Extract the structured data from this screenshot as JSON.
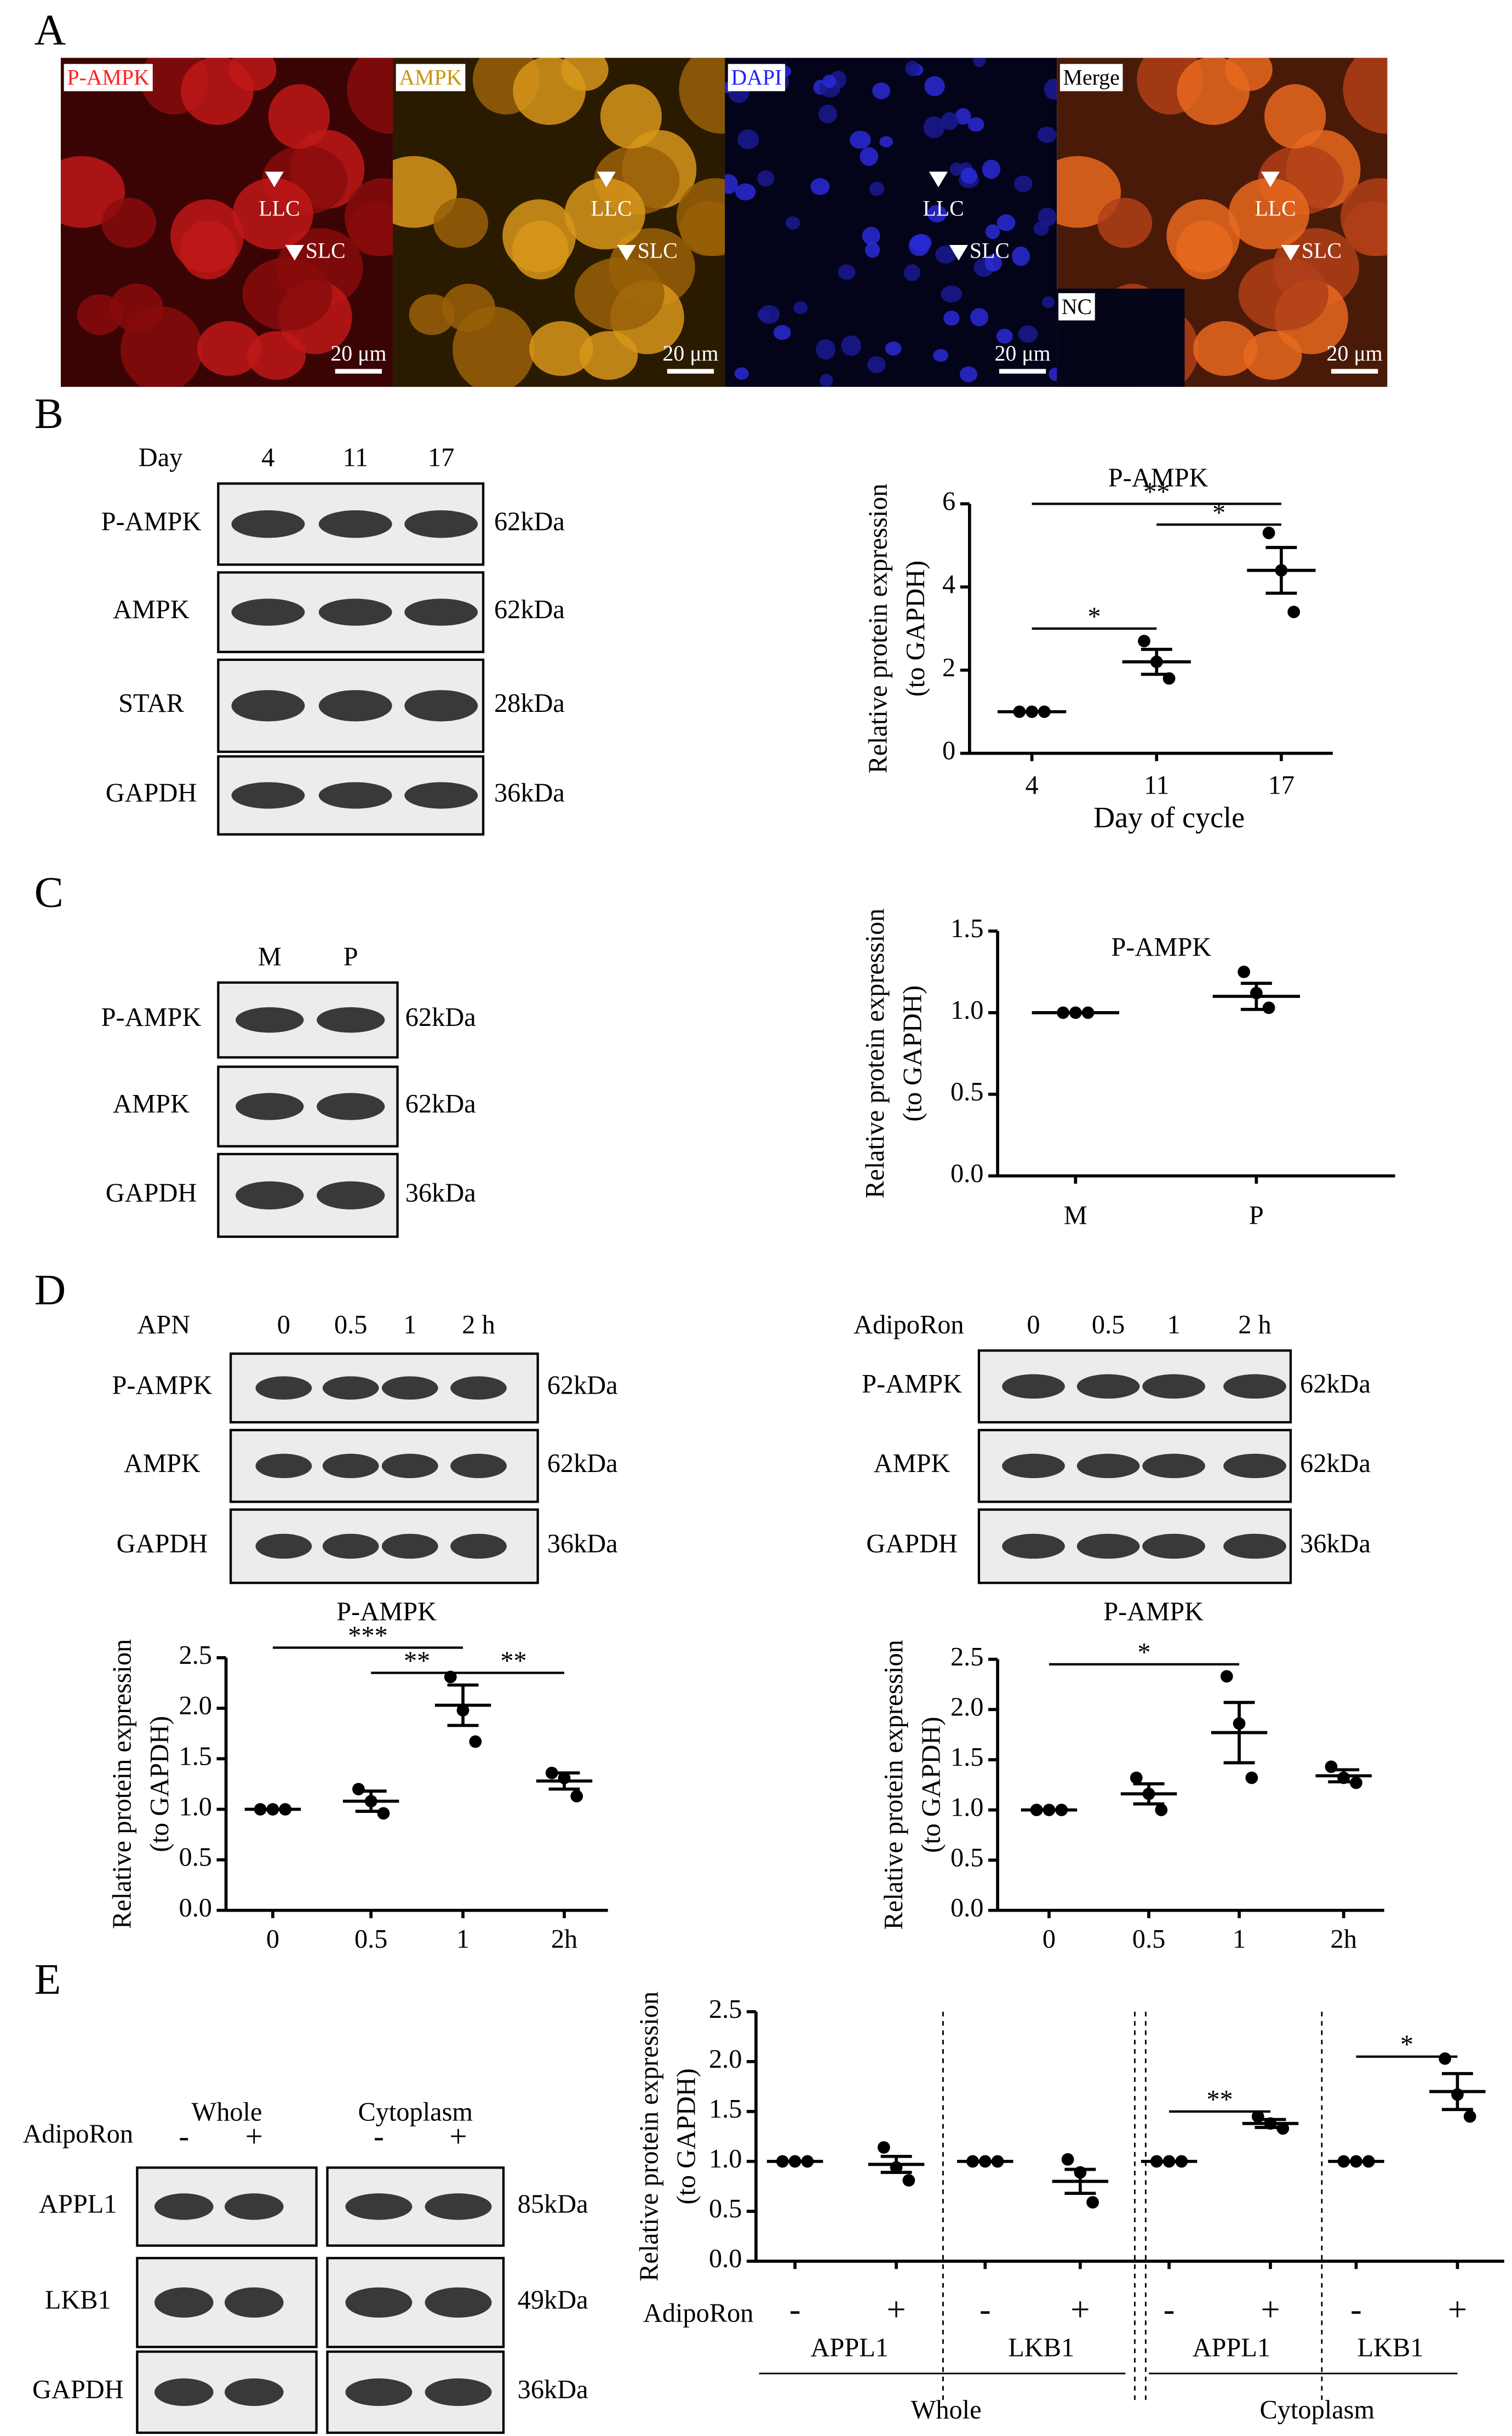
{
  "panel_labels": [
    "A",
    "B",
    "C",
    "D",
    "E"
  ],
  "panel_A": {
    "images": [
      {
        "label": "P-AMPK",
        "color": "#ff2020"
      },
      {
        "label": "AMPK",
        "color": "#c8960f"
      },
      {
        "label": "DAPI",
        "color": "#2020ff"
      },
      {
        "label": "Merge",
        "color": "#000000"
      }
    ],
    "markers": [
      "LLC",
      "SLC"
    ],
    "scale_bar": "20 μm",
    "inset": "NC"
  },
  "blots": [
    {
      "header": "Day",
      "lanes": [
        "4",
        "11",
        "17"
      ],
      "rows": [
        {
          "label": "P-AMPK",
          "size": "62kDa"
        },
        {
          "label": "AMPK",
          "size": "62kDa"
        },
        {
          "label": "STAR",
          "size": "28kDa"
        },
        {
          "label": "GAPDH",
          "size": "36kDa"
        }
      ]
    },
    {
      "lanes": [
        "M",
        "P"
      ],
      "rows": [
        {
          "label": "P-AMPK",
          "size": "62kDa"
        },
        {
          "label": "AMPK",
          "size": "62kDa"
        },
        {
          "label": "GAPDH",
          "size": "36kDa"
        }
      ]
    },
    {
      "header": "APN",
      "lanes": [
        "0",
        "0.5",
        "1",
        "2 h"
      ],
      "rows": [
        {
          "label": "P-AMPK",
          "size": "62kDa"
        },
        {
          "label": "AMPK",
          "size": "62kDa"
        },
        {
          "label": "GAPDH",
          "size": "36kDa"
        }
      ]
    },
    {
      "header": "AdipoRon",
      "lanes": [
        "0",
        "0.5",
        "1",
        "2 h"
      ],
      "rows": [
        {
          "label": "P-AMPK",
          "size": "62kDa"
        },
        {
          "label": "AMPK",
          "size": "62kDa"
        },
        {
          "label": "GAPDH",
          "size": "36kDa"
        }
      ]
    },
    {
      "header": "AdipoRon",
      "groups": [
        {
          "label": "Whole",
          "lanes": [
            "-",
            "+"
          ]
        },
        {
          "label": "Cytoplasm",
          "lanes": [
            "-",
            "+"
          ]
        }
      ],
      "rows": [
        {
          "label": "APPL1",
          "size": "85kDa"
        },
        {
          "label": "LKB1",
          "size": "49kDa"
        },
        {
          "label": "GAPDH",
          "size": "36kDa"
        }
      ]
    }
  ],
  "chart_data": [
    {
      "type": "dot_plot",
      "title": "P-AMPK",
      "ylabel": [
        "Relative protein expression",
        "(to GAPDH)"
      ],
      "xlabel": "Day of cycle",
      "categories": [
        "4",
        "11",
        "17"
      ],
      "points": [
        [
          1,
          1,
          1
        ],
        [
          2.7,
          2.2,
          1.8
        ],
        [
          5.3,
          4.4,
          3.4
        ]
      ],
      "means": [
        1,
        2.2,
        4.4
      ],
      "sem": [
        0,
        0.3,
        0.55
      ],
      "ylim": [
        0,
        6
      ],
      "yticks": [
        0,
        2,
        4,
        6
      ],
      "significance": [
        {
          "label": "**",
          "between": [
            0,
            2
          ],
          "y": 6.0
        },
        {
          "label": "*",
          "between": [
            0,
            1
          ],
          "y": 3.0
        },
        {
          "label": "*",
          "between": [
            1,
            2
          ],
          "y": 5.5
        }
      ],
      "color": "#000000"
    },
    {
      "type": "dot_plot",
      "title": "P-AMPK",
      "ylabel": [
        "Relative protein expression",
        "(to GAPDH)"
      ],
      "categories": [
        "M",
        "P"
      ],
      "points": [
        [
          1,
          1,
          1
        ],
        [
          1.25,
          1.12,
          1.03
        ]
      ],
      "means": [
        1,
        1.1
      ],
      "sem": [
        0,
        0.08
      ],
      "ylim": [
        0,
        1.5
      ],
      "yticks": [
        {
          "value": 0,
          "label": "0.0"
        },
        0.5,
        {
          "value": 1,
          "label": "1.0"
        },
        1.5
      ],
      "color": "#000000"
    },
    {
      "type": "dot_plot",
      "title": "P-AMPK",
      "ylabel": [
        "Relative protein expression",
        "(to GAPDH)"
      ],
      "categories": [
        "0",
        "0.5",
        "1",
        "2h"
      ],
      "points": [
        [
          1,
          1,
          1
        ],
        [
          1.2,
          1.08,
          0.96
        ],
        [
          2.31,
          1.98,
          1.67
        ],
        [
          1.36,
          1.31,
          1.13
        ]
      ],
      "means": [
        1,
        1.08,
        2.03,
        1.28
      ],
      "sem": [
        0,
        0.1,
        0.2,
        0.08
      ],
      "ylim": [
        0,
        2.5
      ],
      "yticks": [
        {
          "value": 0,
          "label": "0.0"
        },
        0.5,
        {
          "value": 1,
          "label": "1.0"
        },
        1.5,
        {
          "value": 2,
          "label": "2.0"
        },
        2.5
      ],
      "significance": [
        {
          "label": "***",
          "between": [
            0,
            2
          ],
          "y": 2.6
        },
        {
          "label": "**",
          "between": [
            1,
            2
          ],
          "y": 2.35
        },
        {
          "label": "**",
          "between": [
            2,
            3
          ],
          "y": 2.35
        }
      ],
      "color": "#000000"
    },
    {
      "type": "dot_plot",
      "title": "P-AMPK",
      "ylabel": [
        "Relative protein expression",
        "(to GAPDH)"
      ],
      "categories": [
        "0",
        "0.5",
        "1",
        "2h"
      ],
      "points": [
        [
          1,
          1,
          1
        ],
        [
          1.32,
          1.16,
          1.0
        ],
        [
          2.33,
          1.86,
          1.32
        ],
        [
          1.43,
          1.32,
          1.27
        ]
      ],
      "means": [
        1,
        1.16,
        1.77,
        1.34
      ],
      "sem": [
        0,
        0.1,
        0.3,
        0.06
      ],
      "ylim": [
        0,
        2.5
      ],
      "yticks": [
        {
          "value": 0,
          "label": "0.0"
        },
        0.5,
        {
          "value": 1,
          "label": "1.0"
        },
        1.5,
        {
          "value": 2,
          "label": "2.0"
        },
        2.5
      ],
      "significance": [
        {
          "label": "*",
          "between": [
            0,
            2
          ],
          "y": 2.45
        }
      ],
      "color": "#000000"
    },
    {
      "type": "dot_plot",
      "ylabel": [
        "Relative protein expression",
        "(to GAPDH)"
      ],
      "row_label": "AdipoRon",
      "categories": [
        "-",
        "+",
        "-",
        "+",
        "-",
        "+",
        "-",
        "+"
      ],
      "subgroups": [
        "APPL1",
        "LKB1",
        "APPL1",
        "LKB1"
      ],
      "groups": [
        "Whole",
        "Cytoplasm"
      ],
      "points": [
        [
          1,
          1,
          1
        ],
        [
          1.14,
          0.94,
          0.81
        ],
        [
          1,
          1,
          1
        ],
        [
          1.02,
          0.89,
          0.59
        ],
        [
          1,
          1,
          1
        ],
        [
          1.45,
          1.38,
          1.33
        ],
        [
          1,
          1,
          1
        ],
        [
          2.03,
          1.67,
          1.45
        ]
      ],
      "means": [
        1,
        0.97,
        1,
        0.8,
        1,
        1.38,
        1,
        1.7
      ],
      "sem": [
        0,
        0.08,
        0,
        0.12,
        0,
        0.04,
        0,
        0.18
      ],
      "ylim": [
        0,
        2.5
      ],
      "yticks": [
        {
          "value": 0,
          "label": "0.0"
        },
        0.5,
        {
          "value": 1,
          "label": "1.0"
        },
        1.5,
        {
          "value": 2,
          "label": "2.0"
        },
        2.5
      ],
      "significance": [
        {
          "label": "**",
          "between": [
            4,
            5
          ],
          "y": 1.5
        },
        {
          "label": "*",
          "between": [
            6,
            7
          ],
          "y": 2.05
        }
      ],
      "color": "#000000"
    }
  ]
}
